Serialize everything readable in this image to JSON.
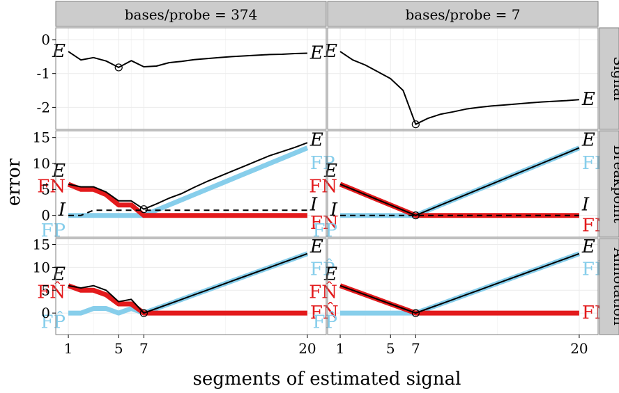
{
  "chart_data": {
    "type": "line",
    "xlabel": "segments of estimated signal",
    "ylabel": "error",
    "x_ticks": [
      1,
      5,
      7,
      20
    ],
    "xlim": [
      0,
      21.5
    ],
    "columns": [
      "bases/probe = 374",
      "bases/probe = 7"
    ],
    "rows": [
      {
        "label": "Signal",
        "ylim": [
          -2.65,
          0.35
        ],
        "y_ticks": [
          0,
          -1,
          -2
        ],
        "y_tick_labels": [
          "0",
          "-1",
          "-2"
        ]
      },
      {
        "label": "Breakpoint",
        "ylim": [
          -4.2,
          16.3
        ],
        "y_ticks": [
          0,
          5,
          10,
          15
        ],
        "y_tick_labels": [
          "0",
          "5",
          "10",
          "15"
        ]
      },
      {
        "label": "Annotation",
        "ylim": [
          -4.7,
          16.3
        ],
        "y_ticks": [
          0,
          5,
          10,
          15
        ],
        "y_tick_labels": [
          "0",
          "5",
          "10",
          "15"
        ]
      }
    ],
    "x": [
      1,
      2,
      3,
      4,
      5,
      6,
      7,
      8,
      9,
      10,
      11,
      12,
      13,
      14,
      15,
      16,
      17,
      18,
      19,
      20
    ],
    "colors": {
      "FP": "#87ceeb",
      "FN": "#e31a1c",
      "E": "#000000",
      "grid": "#ebebeb",
      "strip": "#cccccc"
    },
    "panels": [
      {
        "row": 0,
        "col": 0,
        "series": [
          {
            "name": "E",
            "style": "solid",
            "color": "#000000",
            "width": 2,
            "values": [
              -0.35,
              -0.6,
              -0.53,
              -0.63,
              -0.82,
              -0.62,
              -0.8,
              -0.78,
              -0.68,
              -0.64,
              -0.59,
              -0.56,
              -0.53,
              -0.5,
              -0.48,
              -0.46,
              -0.44,
              -0.43,
              -0.41,
              -0.4
            ]
          }
        ],
        "marker": {
          "x": 5,
          "y": -0.82
        },
        "labels": [
          {
            "text": "E",
            "x": 1,
            "y": -0.35,
            "side": "left"
          },
          {
            "text": "E",
            "x": 20,
            "y": -0.4,
            "side": "right"
          }
        ]
      },
      {
        "row": 0,
        "col": 1,
        "series": [
          {
            "name": "E",
            "style": "solid",
            "color": "#000000",
            "width": 2,
            "values": [
              -0.35,
              -0.6,
              -0.75,
              -0.95,
              -1.15,
              -1.5,
              -2.5,
              -2.32,
              -2.2,
              -2.13,
              -2.05,
              -2.0,
              -1.96,
              -1.93,
              -1.9,
              -1.87,
              -1.84,
              -1.82,
              -1.8,
              -1.77
            ]
          }
        ],
        "marker": {
          "x": 7,
          "y": -2.5
        },
        "labels": [
          {
            "text": "E",
            "x": 1,
            "y": -0.35,
            "side": "left"
          },
          {
            "text": "E",
            "x": 20,
            "y": -1.77,
            "side": "right"
          }
        ]
      },
      {
        "row": 1,
        "col": 0,
        "series": [
          {
            "name": "FP",
            "style": "solid",
            "color": "#87ceeb",
            "width": 7,
            "values": [
              0,
              0,
              0,
              0,
              0,
              0,
              0,
              1,
              2,
              3,
              4,
              5,
              6,
              7,
              8,
              9,
              10,
              11,
              12,
              13
            ]
          },
          {
            "name": "FN",
            "style": "solid",
            "color": "#e31a1c",
            "width": 7,
            "values": [
              6,
              5,
              5,
              4,
              2,
              2,
              0,
              0,
              0,
              0,
              0,
              0,
              0,
              0,
              0,
              0,
              0,
              0,
              0,
              0
            ]
          },
          {
            "name": "I",
            "style": "dashed",
            "color": "#000000",
            "width": 2,
            "values": [
              0,
              0,
              1,
              1,
              1,
              1,
              1,
              1,
              1,
              1,
              1,
              1,
              1,
              1,
              1,
              1,
              1,
              1,
              1,
              1
            ]
          },
          {
            "name": "E",
            "style": "solid",
            "color": "#000000",
            "width": 2,
            "values": [
              6,
              5.5,
              5.5,
              4.5,
              2.8,
              2.8,
              1.2,
              2.2,
              3.3,
              4.2,
              5.4,
              6.5,
              7.5,
              8.5,
              9.5,
              10.5,
              11.5,
              12.3,
              13.1,
              14
            ]
          }
        ],
        "marker": {
          "x": 7,
          "y": 1.2
        },
        "labels": [
          {
            "text": "E",
            "x": 1,
            "y": 8.5,
            "side": "left",
            "color": "#000000"
          },
          {
            "text": "FN",
            "x": 1,
            "y": 5.5,
            "side": "left",
            "color": "#e31a1c"
          },
          {
            "text": "I",
            "x": 1,
            "y": 1,
            "side": "left",
            "color": "#000000"
          },
          {
            "text": "FP",
            "x": 1,
            "y": -3,
            "side": "left",
            "color": "#87ceeb"
          },
          {
            "text": "E",
            "x": 20,
            "y": 14.5,
            "side": "right",
            "color": "#000000"
          },
          {
            "text": "FP",
            "x": 20,
            "y": 10,
            "side": "right",
            "color": "#87ceeb"
          },
          {
            "text": "I",
            "x": 20,
            "y": 2,
            "side": "right",
            "color": "#000000"
          },
          {
            "text": "FN",
            "x": 20,
            "y": -1.5,
            "side": "right",
            "color": "#e31a1c"
          }
        ]
      },
      {
        "row": 1,
        "col": 1,
        "series": [
          {
            "name": "FP",
            "style": "solid",
            "color": "#87ceeb",
            "width": 7,
            "values": [
              0,
              0,
              0,
              0,
              0,
              0,
              0,
              1,
              2,
              3,
              4,
              5,
              6,
              7,
              8,
              9,
              10,
              11,
              12,
              13
            ]
          },
          {
            "name": "FN",
            "style": "solid",
            "color": "#e31a1c",
            "width": 7,
            "values": [
              6,
              5,
              4,
              3,
              2,
              1,
              0,
              0,
              0,
              0,
              0,
              0,
              0,
              0,
              0,
              0,
              0,
              0,
              0,
              0
            ]
          },
          {
            "name": "I",
            "style": "dashed",
            "color": "#000000",
            "width": 2,
            "values": [
              0,
              0,
              0,
              0,
              0,
              0,
              0,
              0,
              0,
              0,
              0,
              0,
              0,
              0,
              0,
              0,
              0,
              0,
              0,
              0
            ]
          },
          {
            "name": "E",
            "style": "solid",
            "color": "#000000",
            "width": 2,
            "values": [
              6,
              5,
              4,
              3,
              2,
              1,
              0,
              1,
              2,
              3,
              4,
              5,
              6,
              7,
              8,
              9,
              10,
              11,
              12,
              13
            ]
          }
        ],
        "marker": {
          "x": 7,
          "y": 0
        },
        "labels": [
          {
            "text": "E",
            "x": 1,
            "y": 8.5,
            "side": "left",
            "color": "#000000"
          },
          {
            "text": "FN",
            "x": 1,
            "y": 5.5,
            "side": "left",
            "color": "#e31a1c"
          },
          {
            "text": "I",
            "x": 1,
            "y": 1,
            "side": "left",
            "color": "#000000"
          },
          {
            "text": "FP",
            "x": 1,
            "y": -3,
            "side": "left",
            "color": "#87ceeb"
          },
          {
            "text": "E",
            "x": 20,
            "y": 14.5,
            "side": "right",
            "color": "#000000"
          },
          {
            "text": "FP",
            "x": 20,
            "y": 10,
            "side": "right",
            "color": "#87ceeb"
          },
          {
            "text": "I",
            "x": 20,
            "y": 2,
            "side": "right",
            "color": "#000000"
          },
          {
            "text": "FN",
            "x": 20,
            "y": -2,
            "side": "right",
            "color": "#e31a1c"
          }
        ]
      },
      {
        "row": 2,
        "col": 0,
        "series": [
          {
            "name": "FP̂",
            "style": "solid",
            "color": "#87ceeb",
            "width": 7,
            "values": [
              0,
              0,
              1,
              1,
              0,
              1,
              0,
              1,
              2,
              3,
              4,
              5,
              6,
              7,
              8,
              9,
              10,
              11,
              12,
              13
            ]
          },
          {
            "name": "FN̂",
            "style": "solid",
            "color": "#e31a1c",
            "width": 7,
            "values": [
              6,
              5,
              5,
              4,
              2,
              2,
              0,
              0,
              0,
              0,
              0,
              0,
              0,
              0,
              0,
              0,
              0,
              0,
              0,
              0
            ]
          },
          {
            "name": "E",
            "style": "solid",
            "color": "#000000",
            "width": 2,
            "values": [
              6,
              5.5,
              6,
              5,
              2.5,
              3,
              0,
              1,
              2,
              3,
              4,
              5,
              6,
              7,
              8,
              9,
              10,
              11,
              12,
              13
            ]
          }
        ],
        "marker": {
          "x": 7,
          "y": 0
        },
        "labels": [
          {
            "text": "E",
            "x": 1,
            "y": 8.5,
            "side": "left",
            "color": "#000000"
          },
          {
            "text": "FN̂",
            "x": 1,
            "y": 4.5,
            "side": "left",
            "color": "#e31a1c"
          },
          {
            "text": "FP̂",
            "x": 1,
            "y": -2,
            "side": "left",
            "color": "#87ceeb"
          },
          {
            "text": "E",
            "x": 20,
            "y": 14.5,
            "side": "right",
            "color": "#000000"
          },
          {
            "text": "FP̂",
            "x": 20,
            "y": 9.5,
            "side": "right",
            "color": "#87ceeb"
          },
          {
            "text": "FN̂",
            "x": 20,
            "y": 0,
            "side": "right",
            "color": "#e31a1c"
          }
        ]
      },
      {
        "row": 2,
        "col": 1,
        "series": [
          {
            "name": "FP̂",
            "style": "solid",
            "color": "#87ceeb",
            "width": 7,
            "values": [
              0,
              0,
              0,
              0,
              0,
              0,
              0,
              1,
              2,
              3,
              4,
              5,
              6,
              7,
              8,
              9,
              10,
              11,
              12,
              13
            ]
          },
          {
            "name": "FN̂",
            "style": "solid",
            "color": "#e31a1c",
            "width": 7,
            "values": [
              6,
              5,
              4,
              3,
              2,
              1,
              0,
              0,
              0,
              0,
              0,
              0,
              0,
              0,
              0,
              0,
              0,
              0,
              0,
              0
            ]
          },
          {
            "name": "E",
            "style": "solid",
            "color": "#000000",
            "width": 2,
            "values": [
              6,
              5,
              4,
              3,
              2,
              1,
              0,
              1,
              2,
              3,
              4,
              5,
              6,
              7,
              8,
              9,
              10,
              11,
              12,
              13
            ]
          }
        ],
        "marker": {
          "x": 7,
          "y": 0
        },
        "labels": [
          {
            "text": "E",
            "x": 1,
            "y": 8.5,
            "side": "left",
            "color": "#000000"
          },
          {
            "text": "FN̂",
            "x": 1,
            "y": 4.5,
            "side": "left",
            "color": "#e31a1c"
          },
          {
            "text": "FP̂",
            "x": 1,
            "y": -2,
            "side": "left",
            "color": "#87ceeb"
          },
          {
            "text": "E",
            "x": 20,
            "y": 14.5,
            "side": "right",
            "color": "#000000"
          },
          {
            "text": "FP̂",
            "x": 20,
            "y": 9.5,
            "side": "right",
            "color": "#87ceeb"
          },
          {
            "text": "FN̂",
            "x": 20,
            "y": 0,
            "side": "right",
            "color": "#e31a1c"
          }
        ]
      }
    ]
  }
}
